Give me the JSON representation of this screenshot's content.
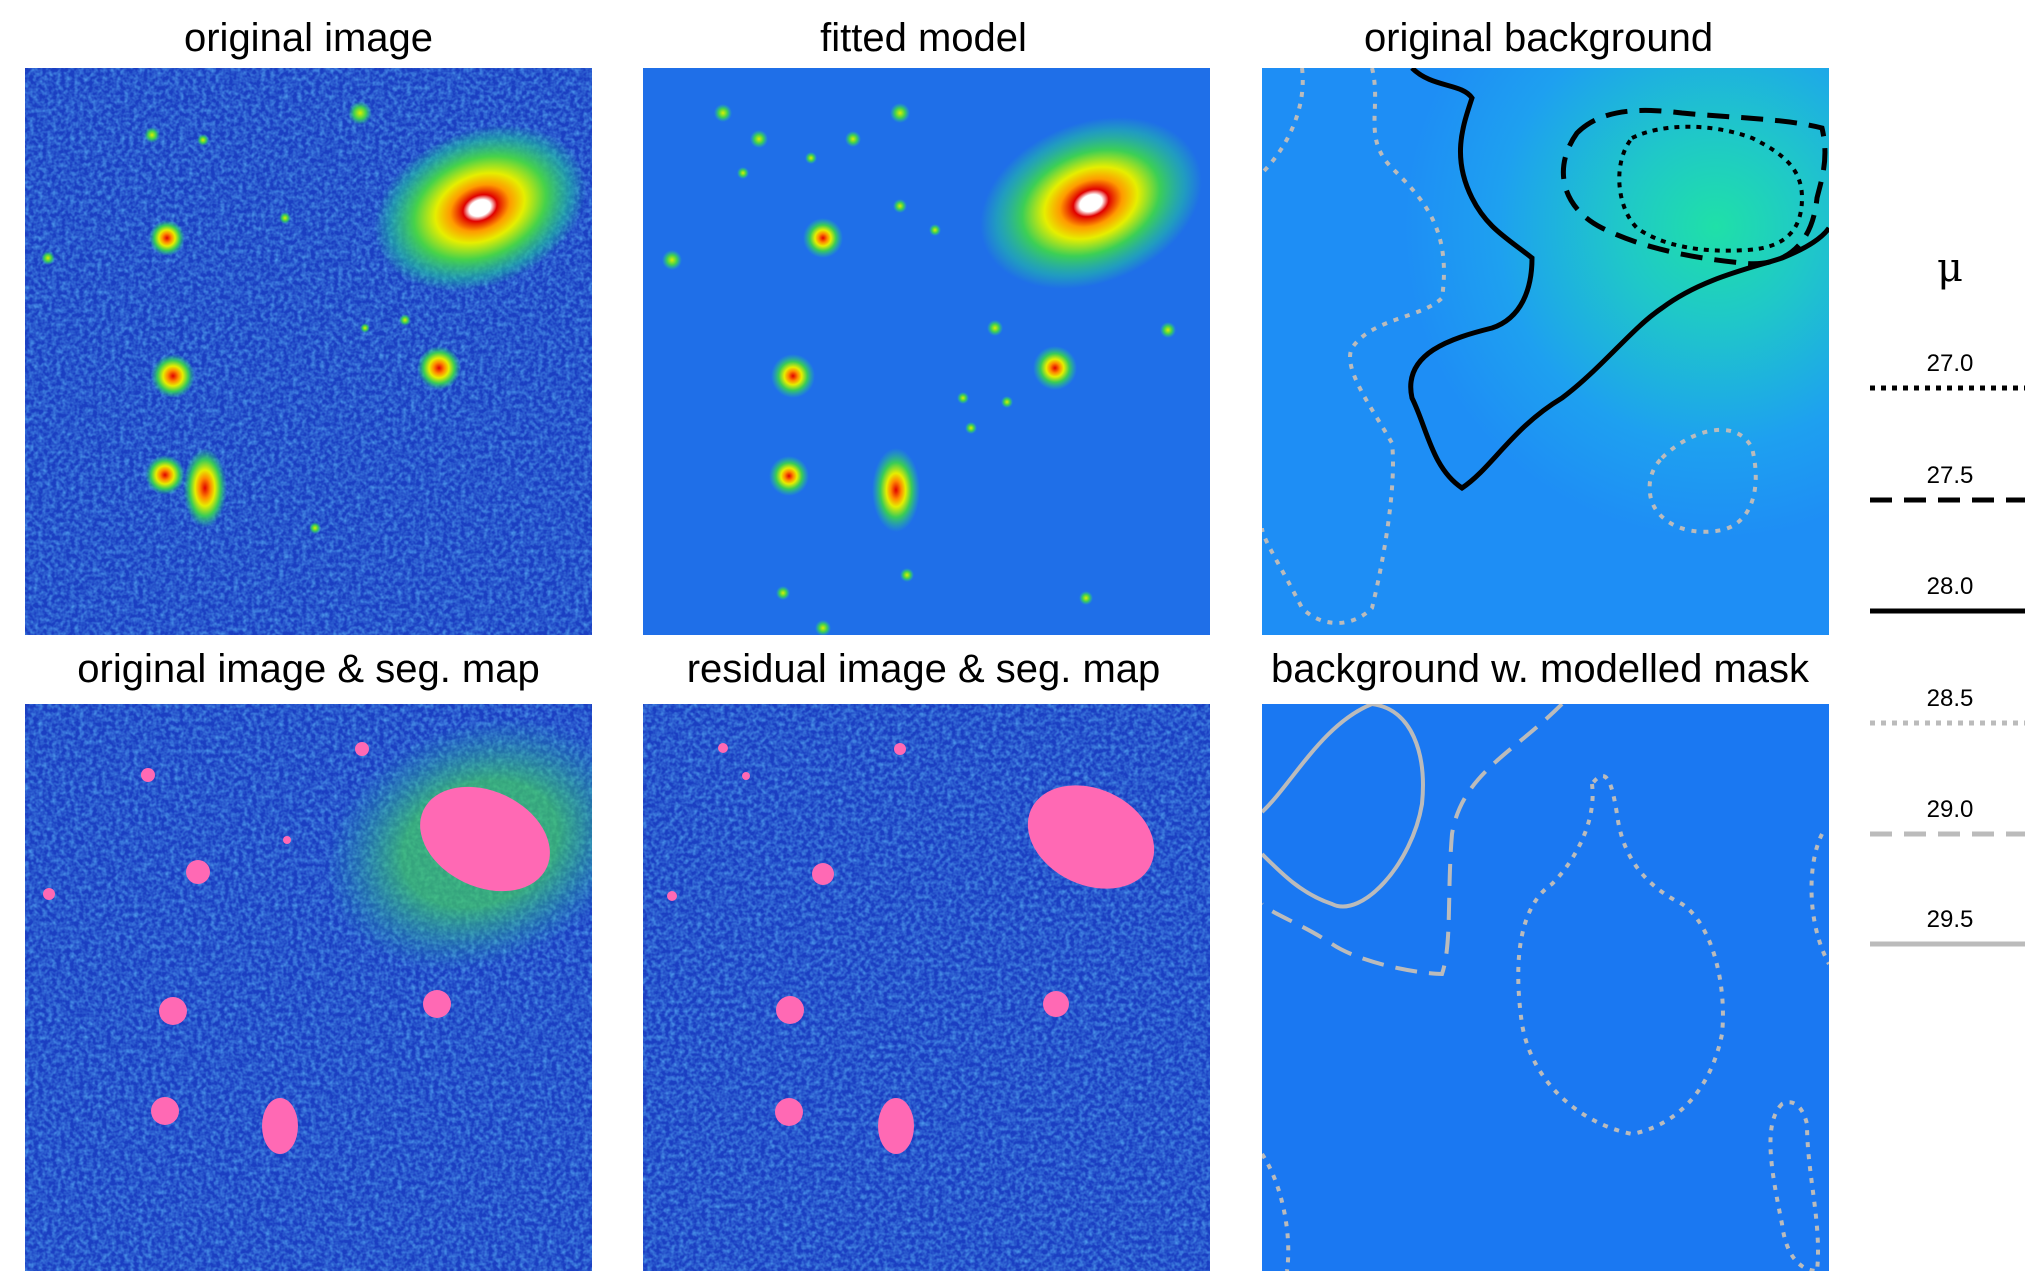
{
  "panels": {
    "p1": {
      "title": "original image"
    },
    "p2": {
      "title": "fitted model"
    },
    "p3": {
      "title": "original background"
    },
    "p4": {
      "title": "original image & seg. map"
    },
    "p5": {
      "title": "residual image & seg. map"
    },
    "p6": {
      "title": "background w. modelled mask"
    }
  },
  "legend": {
    "symbol": "μ",
    "items": [
      {
        "label": "27.0",
        "color": "#000000",
        "style": "dotted"
      },
      {
        "label": "27.5",
        "color": "#000000",
        "style": "dashed"
      },
      {
        "label": "28.0",
        "color": "#000000",
        "style": "solid"
      },
      {
        "label": "28.5",
        "color": "#bbbbbb",
        "style": "dotted"
      },
      {
        "label": "29.0",
        "color": "#bbbbbb",
        "style": "dashed"
      },
      {
        "label": "29.5",
        "color": "#bbbbbb",
        "style": "solid"
      }
    ]
  },
  "colors": {
    "noise_dark": "#1a2fb0",
    "noise_blue": "#1f6ae8",
    "model_bg": "#1f6fe8",
    "seg_mask": "#ff69b4",
    "bg_field": "#1e90f5",
    "contour_black": "#000000",
    "contour_gray": "#bbbbbb"
  }
}
